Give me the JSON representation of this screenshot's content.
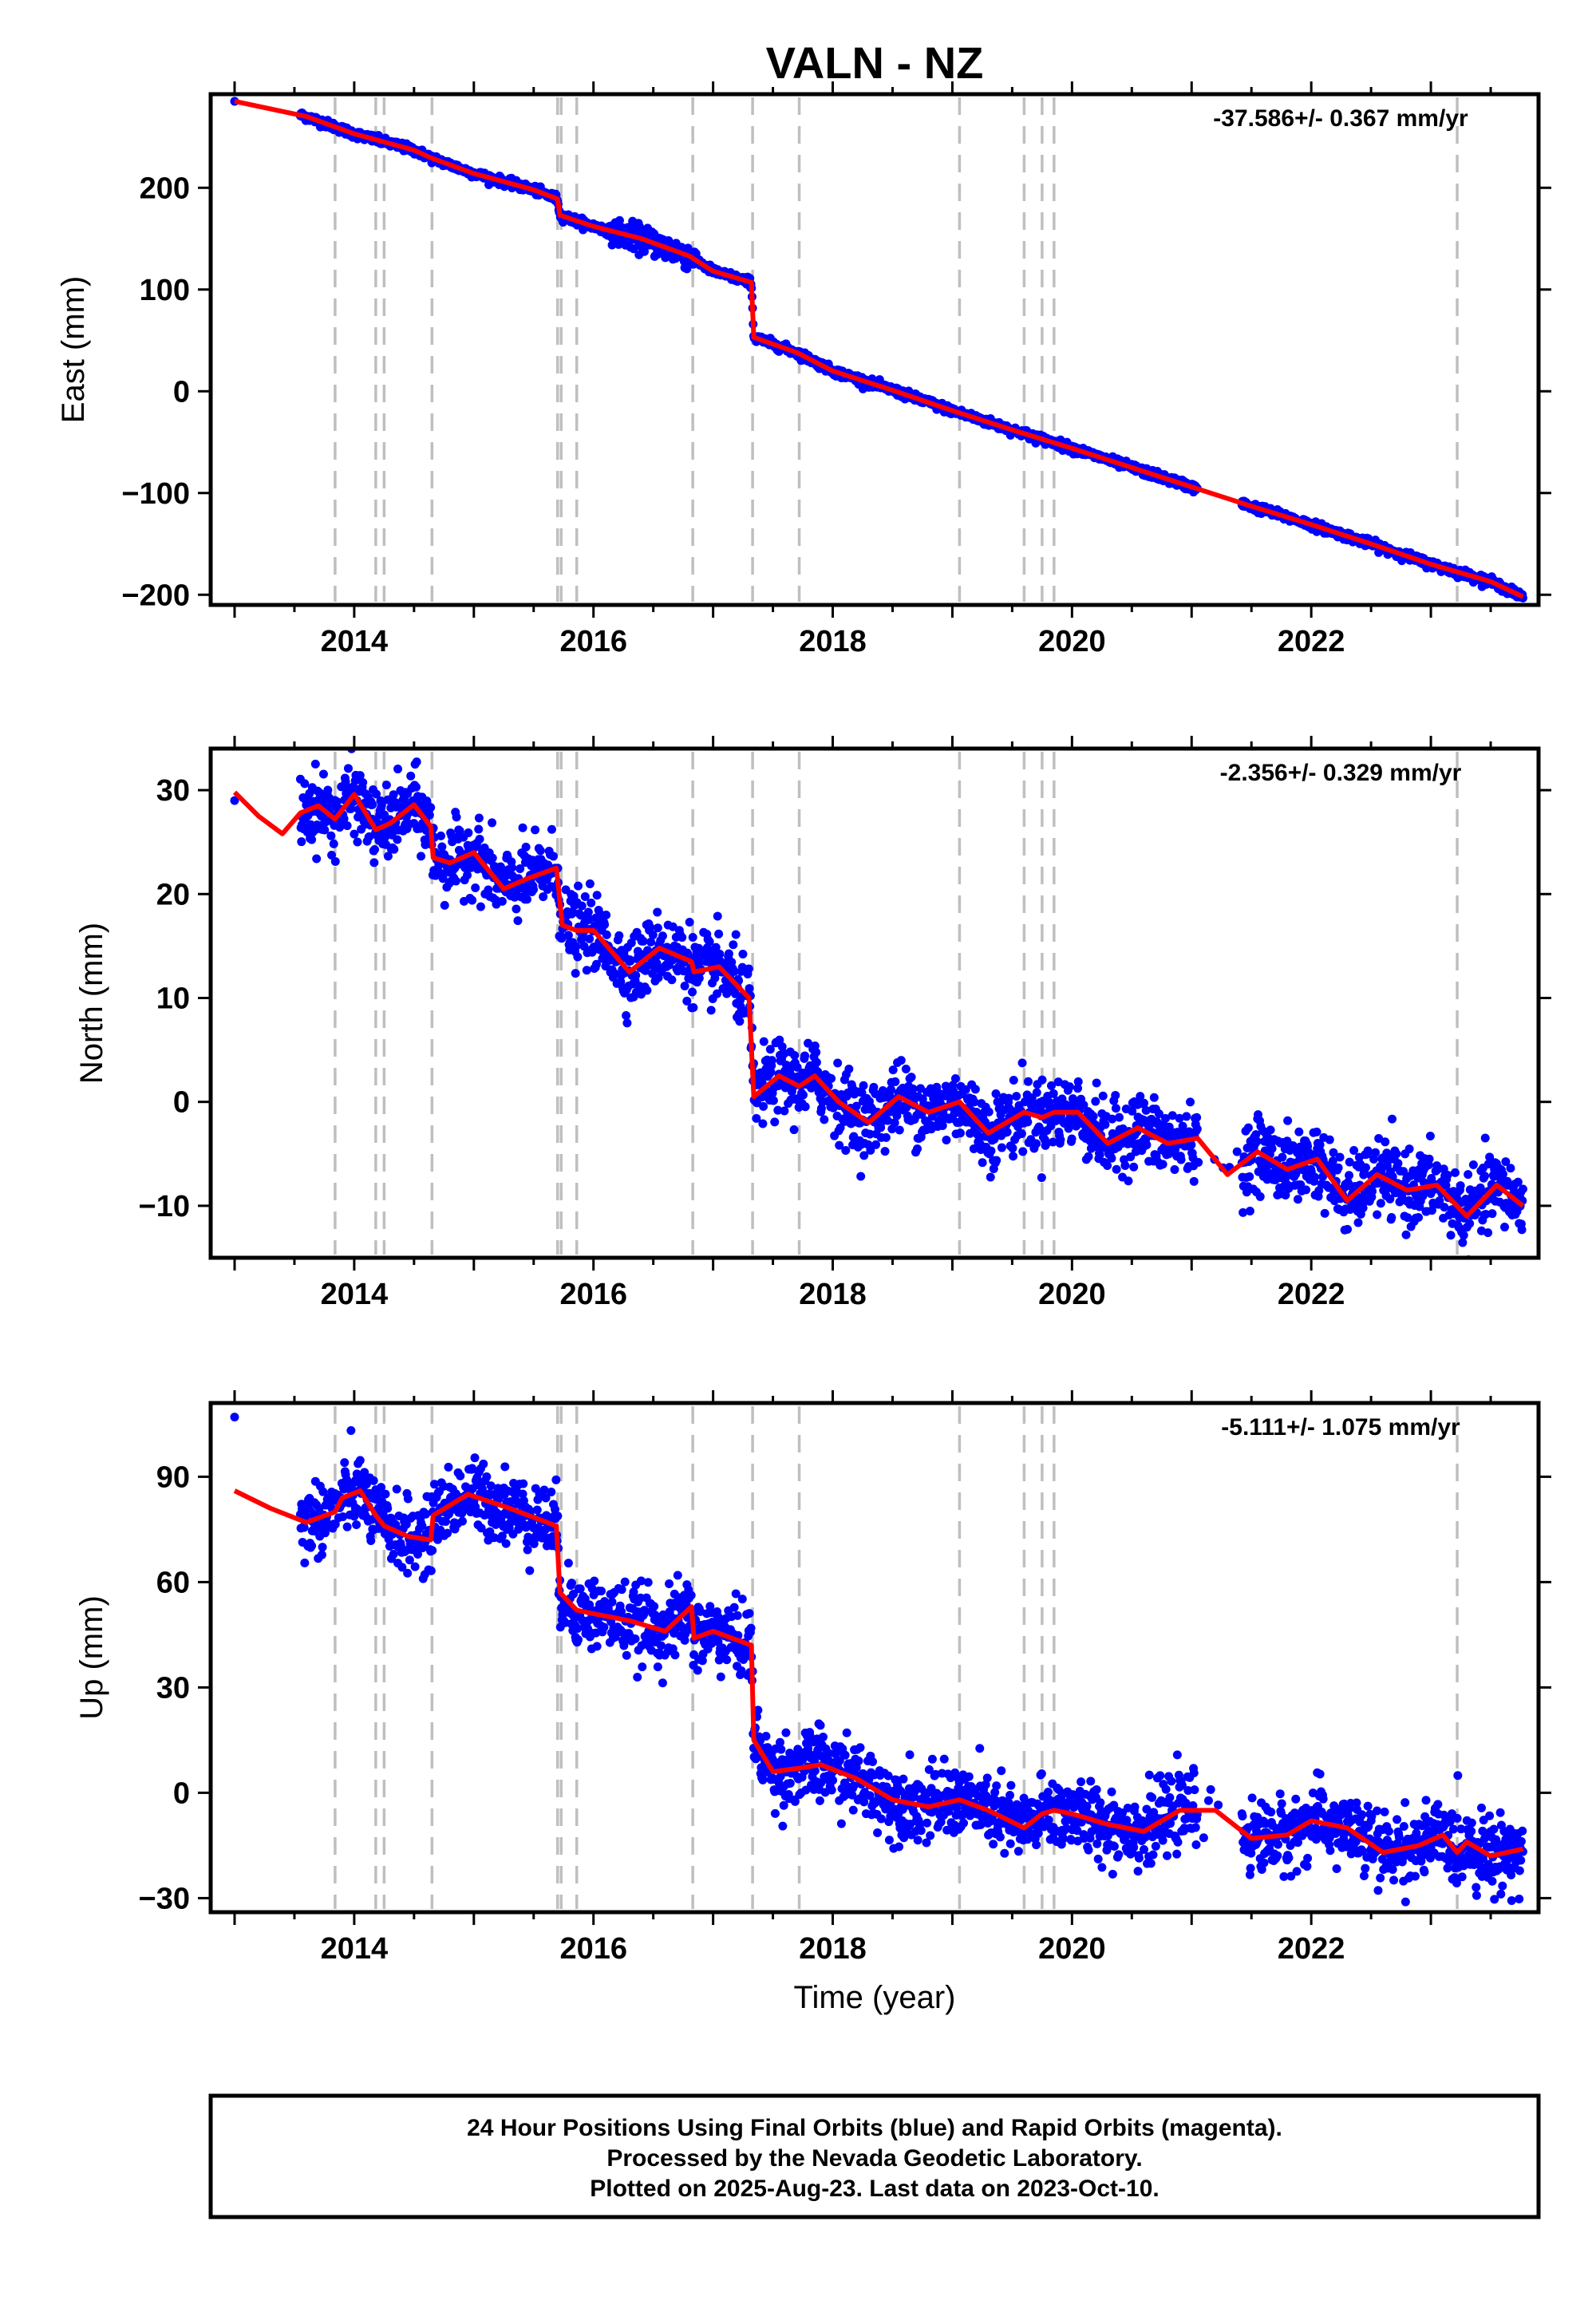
{
  "page": {
    "title": "VALN - NZ",
    "footer": {
      "lines": [
        "24 Hour Positions Using Final Orbits (blue) and Rapid Orbits (magenta).",
        "Processed by the Nevada Geodetic Laboratory.",
        "Plotted on 2025-Aug-23. Last data on 2023-Oct-10."
      ]
    }
  },
  "colors": {
    "data_points": "#0000ff",
    "model_fit": "#ff0000",
    "event_lines": "#bfbfbf",
    "frame": "#000000"
  },
  "chart_data": [
    {
      "type": "scatter",
      "title": "VALN - NZ",
      "xlabel": "",
      "ylabel": "East (mm)",
      "xlim": [
        2012.8,
        2023.9
      ],
      "ylim": [
        -210,
        292
      ],
      "x_ticks": [
        2014,
        2016,
        2018,
        2020,
        2022
      ],
      "x_tick_labels": [
        "2014",
        "2016",
        "2018",
        "2020",
        "2022"
      ],
      "y_ticks": [
        -200,
        -100,
        0,
        100,
        200
      ],
      "y_tick_labels": [
        "−200",
        "−100",
        "0",
        "100",
        "200"
      ],
      "rate": "-37.586+/- 0.367 mm/yr",
      "grid": false,
      "event_lines_x": [
        2013.84,
        2014.18,
        2014.25,
        2014.65,
        2015.7,
        2015.73,
        2015.86,
        2016.83,
        2017.33,
        2017.72,
        2019.06,
        2019.6,
        2019.75,
        2019.85,
        2023.22
      ],
      "series": [
        {
          "name": "",
          "kind": "points",
          "x": [
            2013.0,
            2013.6,
            2014.0,
            2014.5,
            2014.65,
            2015.0,
            2015.5,
            2015.7,
            2015.72,
            2016.0,
            2016.4,
            2016.8,
            2017.0,
            2017.32,
            2017.34,
            2017.7,
            2018.0,
            2018.5,
            2019.0,
            2019.5,
            2020.0,
            2020.5,
            2021.0,
            2021.5,
            2022.0,
            2022.5,
            2023.0,
            2023.5,
            2023.77
          ],
          "y": [
            285,
            270,
            253,
            237,
            229,
            214,
            198,
            189,
            173,
            162,
            150,
            133,
            118,
            107,
            53,
            38,
            20,
            1,
            -19,
            -38,
            -56,
            -75,
            -94,
            -113,
            -131,
            -150,
            -170,
            -187,
            -202
          ]
        },
        {
          "name": "",
          "kind": "line",
          "x": [
            2013.0,
            2013.6,
            2014.0,
            2014.5,
            2014.65,
            2015.0,
            2015.5,
            2015.7,
            2015.72,
            2016.0,
            2016.4,
            2016.8,
            2017.0,
            2017.32,
            2017.34,
            2017.7,
            2018.0,
            2018.5,
            2019.0,
            2019.5,
            2020.0,
            2020.5,
            2021.0,
            2021.5,
            2022.0,
            2022.5,
            2023.0,
            2023.5,
            2023.77
          ],
          "y": [
            285,
            270,
            253,
            237,
            229,
            214,
            198,
            189,
            173,
            162,
            150,
            133,
            118,
            107,
            53,
            38,
            20,
            1,
            -19,
            -38,
            -56,
            -75,
            -94,
            -113,
            -131,
            -150,
            -170,
            -187,
            -202
          ]
        }
      ]
    },
    {
      "type": "scatter",
      "xlabel": "",
      "ylabel": "North (mm)",
      "xlim": [
        2012.8,
        2023.9
      ],
      "ylim": [
        -15,
        34
      ],
      "x_ticks": [
        2014,
        2016,
        2018,
        2020,
        2022
      ],
      "x_tick_labels": [
        "2014",
        "2016",
        "2018",
        "2020",
        "2022"
      ],
      "y_ticks": [
        -10,
        0,
        10,
        20,
        30
      ],
      "y_tick_labels": [
        "−10",
        "0",
        "10",
        "20",
        "30"
      ],
      "rate": "-2.356+/- 0.329 mm/yr",
      "grid": false,
      "event_lines_x": [
        2013.84,
        2014.18,
        2014.25,
        2014.65,
        2015.7,
        2015.73,
        2015.86,
        2016.83,
        2017.33,
        2017.72,
        2019.06,
        2019.6,
        2019.75,
        2019.85,
        2023.22
      ],
      "series": [
        {
          "name": "",
          "kind": "points",
          "x": [
            2013.0,
            2013.4,
            2013.7,
            2014.0,
            2014.3,
            2014.6,
            2014.7,
            2015.0,
            2015.3,
            2015.6,
            2015.72,
            2016.0,
            2016.3,
            2016.6,
            2016.9,
            2017.2,
            2017.32,
            2017.4,
            2017.8,
            2018.0,
            2018.5,
            2019.0,
            2019.5,
            2019.8,
            2020.0,
            2020.4,
            2020.8,
            2021.0,
            2021.3,
            2021.6,
            2022.0,
            2022.3,
            2022.6,
            2023.0,
            2023.3,
            2023.77
          ],
          "y": [
            29,
            26,
            28,
            30,
            26,
            28,
            23,
            24,
            20,
            23,
            18,
            17,
            12,
            14,
            12,
            12,
            9,
            1,
            3,
            1,
            -2,
            0,
            -3,
            -1,
            -2,
            -4,
            -3,
            -5,
            -7,
            -5,
            -6,
            -9,
            -7,
            -9,
            -11,
            -10
          ]
        },
        {
          "name": "",
          "kind": "line",
          "x": [
            2013.0,
            2013.2,
            2013.4,
            2013.55,
            2013.7,
            2013.84,
            2014.0,
            2014.18,
            2014.3,
            2014.5,
            2014.64,
            2014.66,
            2014.8,
            2015.0,
            2015.25,
            2015.45,
            2015.69,
            2015.74,
            2015.86,
            2016.0,
            2016.3,
            2016.55,
            2016.82,
            2016.84,
            2017.05,
            2017.3,
            2017.34,
            2017.55,
            2017.72,
            2017.85,
            2018.05,
            2018.3,
            2018.55,
            2018.8,
            2019.06,
            2019.3,
            2019.6,
            2019.75,
            2019.85,
            2020.05,
            2020.3,
            2020.55,
            2020.8,
            2021.05,
            2021.3,
            2021.55,
            2021.8,
            2022.05,
            2022.3,
            2022.55,
            2022.8,
            2023.05,
            2023.3,
            2023.55,
            2023.77
          ],
          "y": [
            29.8,
            27.5,
            25.8,
            27.8,
            28.5,
            27.2,
            29.6,
            26.2,
            26.8,
            28.6,
            26.5,
            23.5,
            23.0,
            24.0,
            20.5,
            21.5,
            22.5,
            17.0,
            16.5,
            16.5,
            12.5,
            14.8,
            13.5,
            12.5,
            13.0,
            10.0,
            0.5,
            2.5,
            1.5,
            2.5,
            0.0,
            -2.0,
            0.5,
            -1.0,
            0.0,
            -3.0,
            -1.0,
            -1.5,
            -1.0,
            -1.0,
            -4.0,
            -2.5,
            -4.0,
            -3.5,
            -7.0,
            -4.8,
            -6.5,
            -5.5,
            -9.5,
            -7.0,
            -8.5,
            -8.0,
            -11.0,
            -8.0,
            -10.0
          ]
        }
      ]
    },
    {
      "type": "scatter",
      "xlabel": "Time (year)",
      "ylabel": "Up (mm)",
      "xlim": [
        2012.8,
        2023.9
      ],
      "ylim": [
        -34,
        111
      ],
      "x_ticks": [
        2014,
        2016,
        2018,
        2020,
        2022
      ],
      "x_tick_labels": [
        "2014",
        "2016",
        "2018",
        "2020",
        "2022"
      ],
      "y_ticks": [
        -30,
        0,
        30,
        60,
        90
      ],
      "y_tick_labels": [
        "−30",
        "0",
        "30",
        "60",
        "90"
      ],
      "rate": "-5.111+/- 1.075 mm/yr",
      "grid": false,
      "event_lines_x": [
        2013.84,
        2014.18,
        2014.25,
        2014.65,
        2015.7,
        2015.73,
        2015.86,
        2016.83,
        2017.33,
        2017.72,
        2019.06,
        2019.6,
        2019.75,
        2019.85,
        2023.22
      ],
      "series": [
        {
          "name": "",
          "kind": "points",
          "x": [
            2013.0,
            2013.5,
            2013.9,
            2014.2,
            2014.6,
            2014.9,
            2015.3,
            2015.7,
            2015.8,
            2016.2,
            2016.6,
            2016.9,
            2017.2,
            2017.32,
            2017.4,
            2017.8,
            2018.2,
            2018.6,
            2019.0,
            2019.5,
            2020.0,
            2020.5,
            2021.0,
            2021.5,
            2022.0,
            2022.5,
            2023.0,
            2023.4,
            2023.77
          ],
          "y": [
            107,
            80,
            86,
            76,
            73,
            84,
            82,
            78,
            56,
            52,
            49,
            46,
            44,
            42,
            12,
            8,
            4,
            -5,
            -3,
            -9,
            -6,
            -10,
            -5,
            -14,
            -9,
            -18,
            -13,
            -18,
            -18
          ]
        },
        {
          "name": "",
          "kind": "line",
          "x": [
            2013.0,
            2013.3,
            2013.6,
            2013.84,
            2013.9,
            2014.05,
            2014.18,
            2014.25,
            2014.45,
            2014.64,
            2014.66,
            2014.95,
            2015.3,
            2015.69,
            2015.72,
            2015.86,
            2016.0,
            2016.3,
            2016.6,
            2016.82,
            2016.84,
            2017.0,
            2017.32,
            2017.34,
            2017.5,
            2017.72,
            2017.9,
            2018.2,
            2018.5,
            2018.8,
            2019.06,
            2019.3,
            2019.6,
            2019.75,
            2019.85,
            2020.0,
            2020.3,
            2020.6,
            2020.9,
            2021.2,
            2021.5,
            2021.8,
            2022.0,
            2022.3,
            2022.6,
            2022.9,
            2023.1,
            2023.22,
            2023.3,
            2023.5,
            2023.77
          ],
          "y": [
            86,
            81,
            77,
            80,
            84,
            86,
            79,
            76,
            73,
            72,
            79,
            85,
            81,
            76,
            57,
            52,
            51,
            49,
            46,
            53,
            44,
            46,
            42,
            15,
            6,
            7,
            8,
            4,
            -2,
            -4,
            -2,
            -5,
            -10,
            -6,
            -5,
            -6,
            -9,
            -11,
            -5,
            -5,
            -13,
            -12,
            -8,
            -10,
            -17,
            -15,
            -12,
            -17,
            -14,
            -18,
            -16
          ]
        }
      ]
    }
  ]
}
